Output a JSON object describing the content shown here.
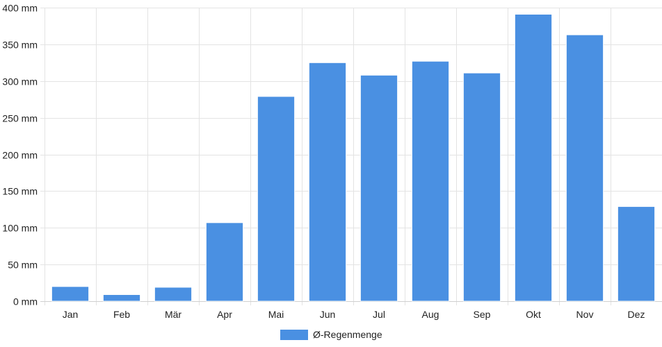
{
  "chart_data": {
    "type": "bar",
    "categories": [
      "Jan",
      "Feb",
      "Mär",
      "Apr",
      "Mai",
      "Jun",
      "Jul",
      "Aug",
      "Sep",
      "Okt",
      "Nov",
      "Dez"
    ],
    "series": [
      {
        "name": "Ø-Regenmenge",
        "values": [
          20,
          9,
          19,
          107,
          279,
          325,
          308,
          327,
          311,
          391,
          363,
          129
        ],
        "color": "#4a90e2"
      }
    ],
    "y_unit_suffix": " mm",
    "ylim": [
      0,
      400
    ],
    "yticks": [
      0,
      50,
      100,
      150,
      200,
      250,
      300,
      350,
      400
    ],
    "grid": true,
    "legend_position": "bottom-center"
  }
}
